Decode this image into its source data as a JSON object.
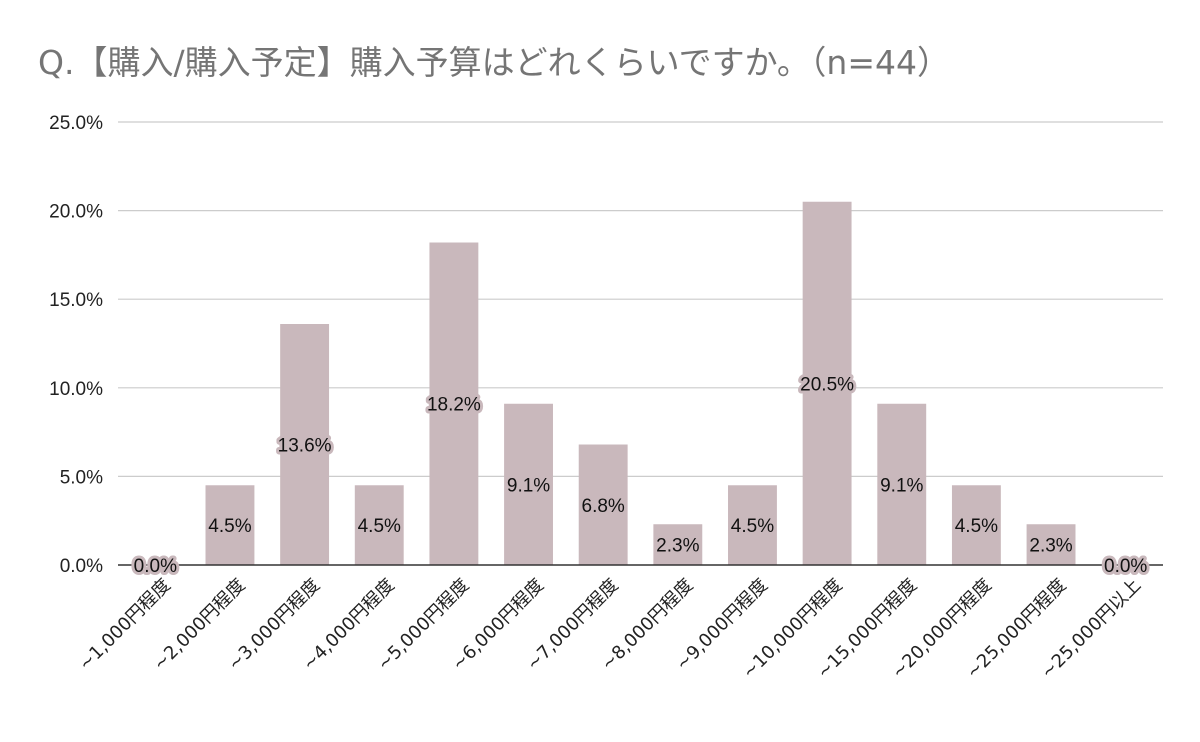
{
  "chart_data": {
    "type": "bar",
    "title": "Q.【購入/購入予定】購入予算はどれくらいですか。（n=44）",
    "xlabel": "",
    "ylabel": "",
    "ylim": [
      0,
      25
    ],
    "y_ticks": [
      "0.0%",
      "5.0%",
      "10.0%",
      "15.0%",
      "20.0%",
      "25.0%"
    ],
    "y_tick_values": [
      0,
      5,
      10,
      15,
      20,
      25
    ],
    "grid": true,
    "legend": "none",
    "bar_color": "#c9b8bc",
    "categories": [
      "~1,000円程度",
      "~2,000円程度",
      "~3,000円程度",
      "~4,000円程度",
      "~5,000円程度",
      "~6,000円程度",
      "~7,000円程度",
      "~8,000円程度",
      "~9,000円程度",
      "~10,000円程度",
      "~15,000円程度",
      "~20,000円程度",
      "~25,000円程度",
      "~25,000円以上"
    ],
    "values": [
      0.0,
      4.5,
      13.6,
      4.5,
      18.2,
      9.1,
      6.8,
      2.3,
      4.5,
      20.5,
      9.1,
      4.5,
      2.3,
      0.0
    ],
    "data_labels": [
      "0.0%",
      "4.5%",
      "13.6%",
      "4.5%",
      "18.2%",
      "9.1%",
      "6.8%",
      "2.3%",
      "4.5%",
      "20.5%",
      "9.1%",
      "4.5%",
      "2.3%",
      "0.0%"
    ]
  }
}
